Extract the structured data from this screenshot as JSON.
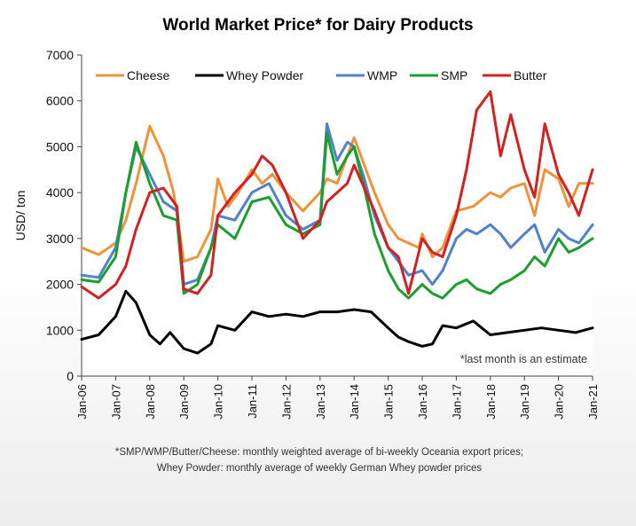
{
  "chart_data": {
    "type": "line",
    "title": "World Market Price* for Dairy Products",
    "xlabel": "",
    "ylabel": "USD/ ton",
    "ylim": [
      0,
      7000
    ],
    "yticks": [
      0,
      1000,
      2000,
      3000,
      4000,
      5000,
      6000,
      7000
    ],
    "xlim": [
      2006,
      2021
    ],
    "xticks": [
      "Jan-06",
      "Jan-07",
      "Jan-08",
      "Jan-09",
      "Jan-10",
      "Jan-11",
      "Jan-12",
      "Jan-13",
      "Jan-14",
      "Jan-15",
      "Jan-16",
      "Jan-17",
      "Jan-18",
      "Jan-19",
      "Jan-20",
      "Jan-21"
    ],
    "legend_position": "top",
    "annotation": "*last month is an estimate",
    "footnote_lines": [
      "*SMP/WMP/Butter/Cheese: monthly weighted average of bi-weekly Oceania export prices;",
      "Whey Powder: monthly average of weekly German Whey powder prices"
    ],
    "grid": false,
    "series": [
      {
        "name": "Cheese",
        "color": "#F0923A",
        "x": [
          2006,
          2006.5,
          2007,
          2007.3,
          2007.6,
          2008,
          2008.4,
          2008.7,
          2009,
          2009.4,
          2009.8,
          2010,
          2010.3,
          2010.6,
          2011,
          2011.3,
          2011.6,
          2012,
          2012.5,
          2013,
          2013.2,
          2013.5,
          2013.8,
          2014,
          2014.3,
          2014.6,
          2015,
          2015.3,
          2015.6,
          2015.9,
          2016,
          2016.3,
          2016.6,
          2017,
          2017.5,
          2018,
          2018.3,
          2018.6,
          2019,
          2019.3,
          2019.6,
          2020,
          2020.3,
          2020.6,
          2021
        ],
        "y": [
          2800,
          2650,
          2900,
          3400,
          4200,
          5450,
          4800,
          4000,
          2500,
          2600,
          3200,
          4300,
          3700,
          4000,
          4500,
          4200,
          4400,
          4000,
          3600,
          4000,
          4300,
          4200,
          4800,
          5200,
          4600,
          4000,
          3300,
          3000,
          2900,
          2800,
          3100,
          2600,
          2800,
          3600,
          3700,
          4000,
          3900,
          4100,
          4200,
          3500,
          4500,
          4300,
          3700,
          4200,
          4200
        ]
      },
      {
        "name": "Whey Powder",
        "color": "#000000",
        "x": [
          2006,
          2006.5,
          2007,
          2007.3,
          2007.6,
          2008,
          2008.3,
          2008.6,
          2009,
          2009.4,
          2009.8,
          2010,
          2010.5,
          2011,
          2011.5,
          2012,
          2012.5,
          2013,
          2013.5,
          2014,
          2014.5,
          2015,
          2015.3,
          2015.6,
          2016,
          2016.3,
          2016.6,
          2017,
          2017.5,
          2018,
          2018.5,
          2019,
          2019.5,
          2020,
          2020.5,
          2021
        ],
        "y": [
          800,
          900,
          1300,
          1850,
          1600,
          900,
          700,
          950,
          600,
          500,
          700,
          1100,
          1000,
          1400,
          1300,
          1350,
          1300,
          1400,
          1400,
          1450,
          1400,
          1050,
          850,
          750,
          650,
          700,
          1100,
          1050,
          1200,
          900,
          950,
          1000,
          1050,
          1000,
          950,
          1050
        ]
      },
      {
        "name": "WMP",
        "color": "#5080D0",
        "x": [
          2006,
          2006.5,
          2007,
          2007.3,
          2007.6,
          2008,
          2008.4,
          2008.8,
          2009,
          2009.4,
          2009.8,
          2010,
          2010.5,
          2011,
          2011.5,
          2012,
          2012.5,
          2013,
          2013.2,
          2013.5,
          2013.8,
          2014,
          2014.3,
          2014.6,
          2015,
          2015.3,
          2015.6,
          2016,
          2016.3,
          2016.6,
          2017,
          2017.3,
          2017.6,
          2018,
          2018.3,
          2018.6,
          2019,
          2019.3,
          2019.6,
          2020,
          2020.3,
          2020.6,
          2021
        ],
        "y": [
          2200,
          2150,
          2800,
          4000,
          5000,
          4400,
          3800,
          3600,
          2000,
          2100,
          2800,
          3500,
          3400,
          4000,
          4200,
          3500,
          3200,
          3400,
          5500,
          4700,
          5100,
          5000,
          4300,
          3500,
          2800,
          2500,
          2200,
          2300,
          2000,
          2300,
          3000,
          3200,
          3100,
          3300,
          3100,
          2800,
          3100,
          3300,
          2700,
          3200,
          3000,
          2900,
          3300
        ]
      },
      {
        "name": "SMP",
        "color": "#1AA02A",
        "x": [
          2006,
          2006.5,
          2007,
          2007.3,
          2007.6,
          2008,
          2008.4,
          2008.8,
          2009,
          2009.4,
          2009.8,
          2010,
          2010.5,
          2011,
          2011.5,
          2012,
          2012.5,
          2013,
          2013.2,
          2013.5,
          2013.8,
          2014,
          2014.3,
          2014.6,
          2015,
          2015.3,
          2015.6,
          2016,
          2016.3,
          2016.6,
          2017,
          2017.3,
          2017.6,
          2018,
          2018.3,
          2018.6,
          2019,
          2019.3,
          2019.6,
          2020,
          2020.3,
          2020.6,
          2021
        ],
        "y": [
          2100,
          2050,
          2600,
          4000,
          5100,
          4200,
          3500,
          3400,
          1800,
          2000,
          2800,
          3300,
          3000,
          3800,
          3900,
          3300,
          3100,
          3300,
          5300,
          4400,
          4800,
          5000,
          4100,
          3100,
          2300,
          1900,
          1700,
          2000,
          1800,
          1700,
          2000,
          2100,
          1900,
          1800,
          2000,
          2100,
          2300,
          2600,
          2400,
          3000,
          2700,
          2800,
          3000
        ]
      },
      {
        "name": "Butter",
        "color": "#D42020",
        "x": [
          2006,
          2006.5,
          2007,
          2007.3,
          2007.6,
          2008,
          2008.4,
          2008.8,
          2009,
          2009.4,
          2009.8,
          2010,
          2010.5,
          2011,
          2011.3,
          2011.6,
          2012,
          2012.5,
          2013,
          2013.2,
          2013.5,
          2013.8,
          2014,
          2014.3,
          2014.6,
          2015,
          2015.3,
          2015.6,
          2016,
          2016.3,
          2016.6,
          2017,
          2017.3,
          2017.6,
          2018,
          2018.3,
          2018.6,
          2019,
          2019.3,
          2019.6,
          2020,
          2020.3,
          2020.6,
          2021
        ],
        "y": [
          1950,
          1700,
          2000,
          2400,
          3200,
          4000,
          4100,
          3700,
          1900,
          1800,
          2200,
          3500,
          4000,
          4400,
          4800,
          4600,
          4000,
          3000,
          3400,
          3800,
          4000,
          4200,
          4600,
          4100,
          3600,
          2800,
          2600,
          1800,
          3000,
          2700,
          2600,
          3500,
          4500,
          5800,
          6200,
          4800,
          5700,
          4500,
          3900,
          5500,
          4400,
          4000,
          3500,
          4500
        ]
      }
    ]
  }
}
